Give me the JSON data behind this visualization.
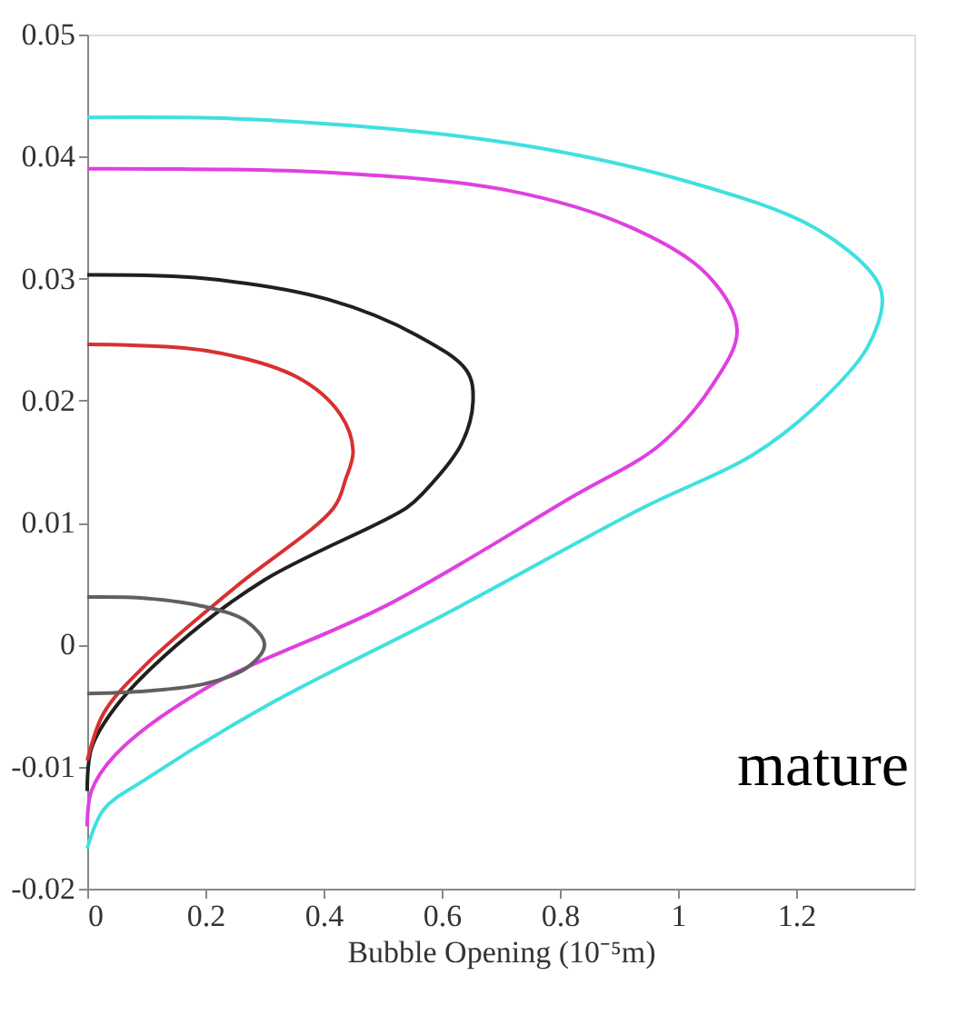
{
  "chart_data": {
    "type": "line",
    "xlabel": "Bubble Opening (10⁻⁵m)",
    "xlim": [
      0,
      1.4
    ],
    "xticks": [
      0,
      0.2,
      0.4,
      0.6,
      0.8,
      1,
      1.2
    ],
    "ylim": [
      -0.02,
      0.05
    ],
    "yticks": [
      -0.02,
      -0.01,
      0,
      0.01,
      0.02,
      0.03,
      0.04,
      0.05
    ],
    "grid": false,
    "legend": false,
    "marker": "none",
    "line_style": "solid",
    "annotations": [
      "mature"
    ],
    "series": [
      {
        "color": "#40e0e0",
        "x": [
          0,
          0.3,
          0.715,
          1.02,
          1.23,
          1.33,
          1.346,
          1.32,
          1.23,
          1.125,
          0.94,
          0.61,
          0.3,
          0.1,
          0.028,
          0
        ],
        "values": [
          0.0432,
          0.043,
          0.0411,
          0.0379,
          0.0342,
          0.0303,
          0.0283,
          0.0243,
          0.0194,
          0.0155,
          0.0112,
          0.0026,
          -0.0051,
          -0.011,
          -0.0135,
          -0.0167
        ]
      },
      {
        "color": "#e040e0",
        "x": [
          0,
          0.407,
          0.715,
          0.92,
          1.05,
          1.1,
          1.06,
          0.97,
          0.817,
          0.51,
          0.2,
          0.048,
          0.007,
          0
        ],
        "values": [
          0.039,
          0.0387,
          0.0372,
          0.0342,
          0.0303,
          0.0258,
          0.0214,
          0.0164,
          0.012,
          0.0033,
          -0.0036,
          -0.009,
          -0.012,
          -0.0149
        ]
      },
      {
        "color": "#202020",
        "x": [
          0,
          0.2,
          0.407,
          0.56,
          0.643,
          0.653,
          0.633,
          0.57,
          0.54,
          0.3,
          0.15,
          0.048,
          0.007,
          0
        ],
        "values": [
          0.0303,
          0.03,
          0.0283,
          0.0253,
          0.0224,
          0.0199,
          0.0164,
          0.0125,
          0.0112,
          0.0053,
          -0.0001,
          -0.0051,
          -0.0085,
          -0.012
        ]
      },
      {
        "color": "#d83030",
        "x": [
          0,
          0.2,
          0.356,
          0.428,
          0.45,
          0.437,
          0.417,
          0.253,
          0.1,
          0.028,
          0
        ],
        "values": [
          0.0246,
          0.0241,
          0.0219,
          0.0189,
          0.0159,
          0.0135,
          0.0112,
          0.0048,
          -0.0016,
          -0.0056,
          -0.0095
        ]
      },
      {
        "color": "#606060",
        "x": [
          0,
          0.1,
          0.2,
          0.27,
          0.3,
          0.27,
          0.2,
          0.1,
          0
        ],
        "values": [
          0.0039,
          0.0038,
          0.0031,
          0.0019,
          0,
          -0.0019,
          -0.0032,
          -0.0038,
          -0.004
        ]
      }
    ]
  }
}
